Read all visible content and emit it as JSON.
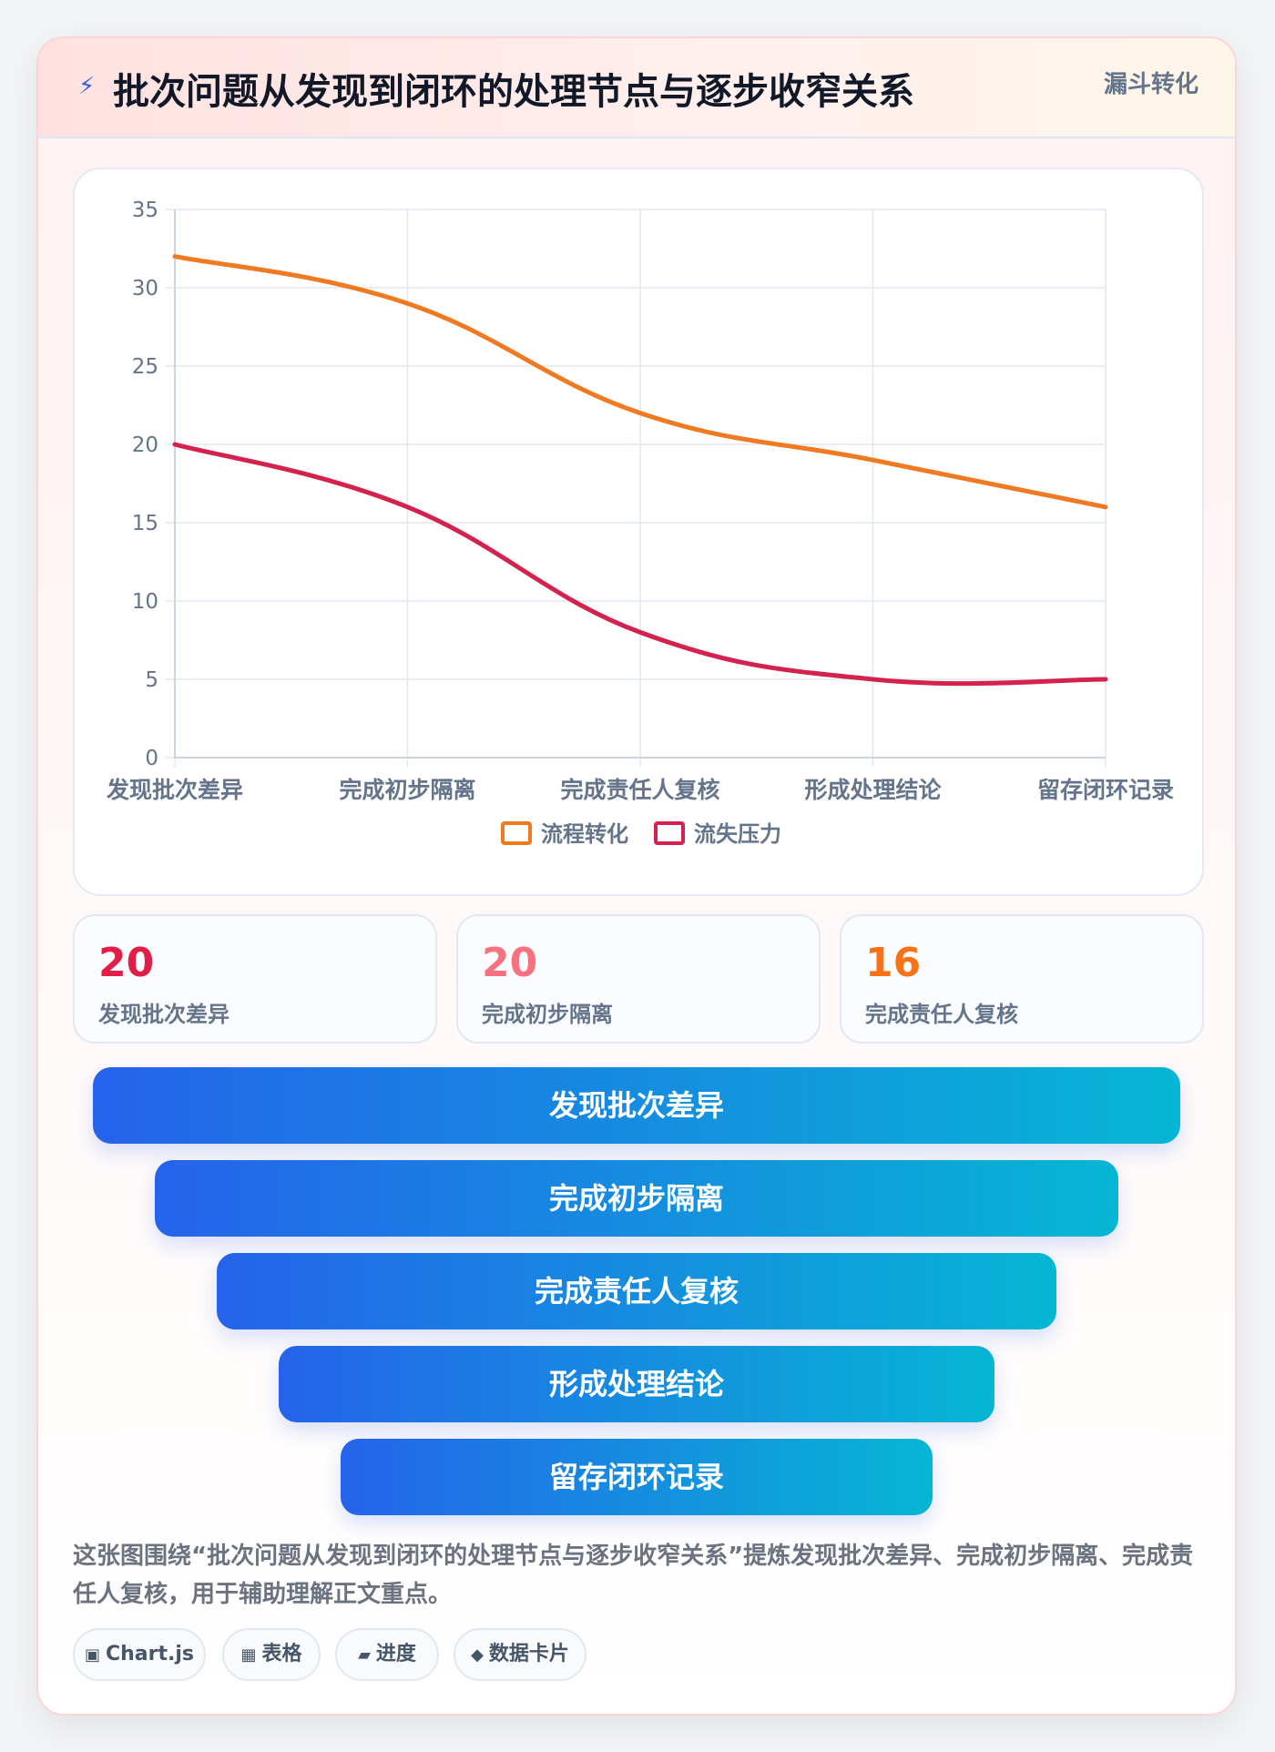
{
  "header": {
    "icon": "lightning-icon",
    "title": "批次问题从发现到闭环的处理节点与逐步收窄关系",
    "tag": "漏斗转化"
  },
  "chart_data": {
    "type": "line",
    "categories": [
      "发现批次差异",
      "完成初步隔离",
      "完成责任人复核",
      "形成处理结论",
      "留存闭环记录"
    ],
    "series": [
      {
        "name": "流程转化",
        "values": [
          32,
          29,
          22,
          19,
          16
        ],
        "color": "#f07a21"
      },
      {
        "name": "流失压力",
        "values": [
          20,
          16,
          8,
          5,
          5
        ],
        "color": "#d4224f"
      }
    ],
    "ylim": [
      0,
      35
    ],
    "yticks": [
      0,
      5,
      10,
      15,
      20,
      25,
      30,
      35
    ],
    "grid": true,
    "legend": "bottom"
  },
  "stats": [
    {
      "value": "20",
      "label": "发现批次差异",
      "color": "#e11d48"
    },
    {
      "value": "20",
      "label": "完成初步隔离",
      "color": "#f8717e"
    },
    {
      "value": "16",
      "label": "完成责任人复核",
      "color": "#f97316"
    }
  ],
  "funnel": [
    "发现批次差异",
    "完成初步隔离",
    "完成责任人复核",
    "形成处理结论",
    "留存闭环记录"
  ],
  "description": "这张图围绕“批次问题从发现到闭环的处理节点与逐步收窄关系”提炼发现批次差异、完成初步隔离、完成责任人复核，用于辅助理解正文重点。",
  "pills": [
    {
      "icon": "▣",
      "label": "Chart.js"
    },
    {
      "icon": "▦",
      "label": "表格"
    },
    {
      "icon": "▰",
      "label": "进度"
    },
    {
      "icon": "◆",
      "label": "数据卡片"
    }
  ]
}
